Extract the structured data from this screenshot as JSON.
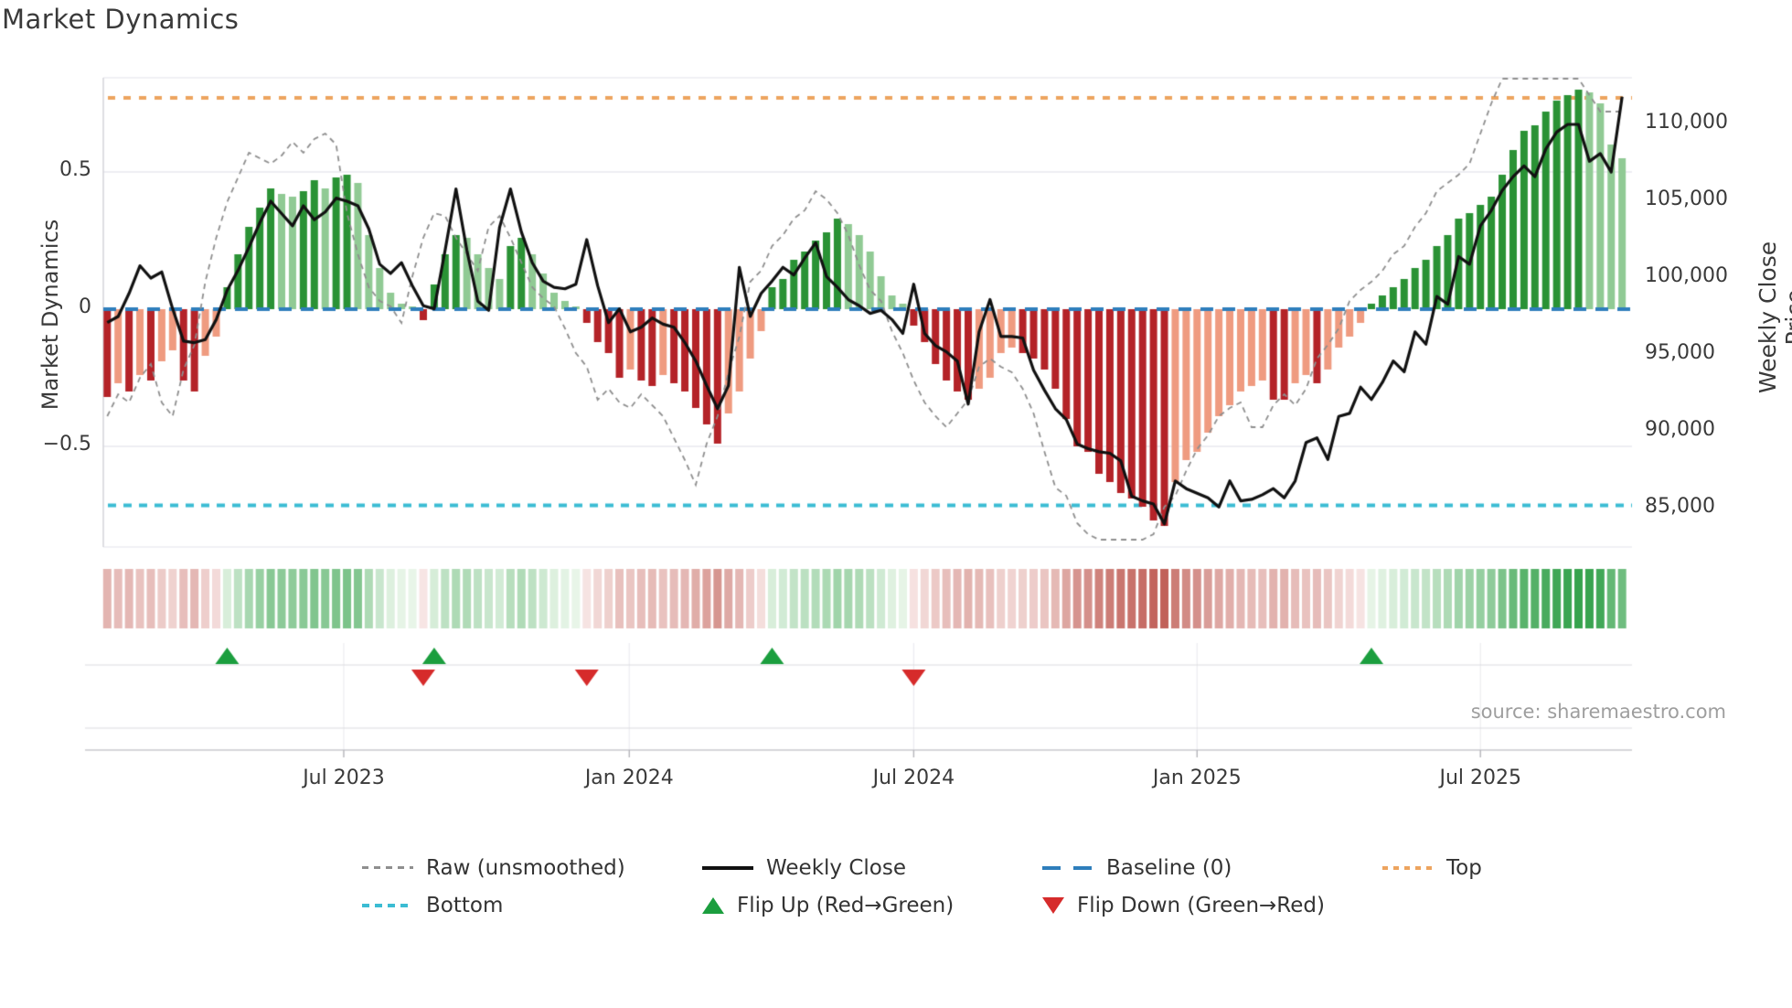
{
  "title": "Market Dynamics",
  "source_text": "source: sharemaestro.com",
  "axes": {
    "left_label": "Market Dynamics",
    "right_label": "Weekly Close Price",
    "left_ticks": [
      {
        "label": "0.5",
        "value": 0.5
      },
      {
        "label": "0",
        "value": 0.0
      },
      {
        "label": "−0.5",
        "value": -0.5
      }
    ],
    "right_ticks": [
      {
        "label": "110,000",
        "value": 110000
      },
      {
        "label": "105,000",
        "value": 105000
      },
      {
        "label": "100,000",
        "value": 100000
      },
      {
        "label": "95,000",
        "value": 95000
      },
      {
        "label": "90,000",
        "value": 90000
      },
      {
        "label": "85,000",
        "value": 85000
      }
    ],
    "x_ticks": [
      {
        "label": "Jul 2023",
        "week": 21.7
      },
      {
        "label": "Jan 2024",
        "week": 47.9
      },
      {
        "label": "Jul 2024",
        "week": 74.0
      },
      {
        "label": "Jan 2025",
        "week": 100.0
      },
      {
        "label": "Jul 2025",
        "week": 126.0
      }
    ]
  },
  "legend": {
    "items": [
      {
        "label": "Raw (unsmoothed)",
        "swatch": "dashed-gray-line"
      },
      {
        "label": "Weekly Close",
        "swatch": "solid-black-line"
      },
      {
        "label": "Baseline (0)",
        "swatch": "dashed-blue-line"
      },
      {
        "label": "Top",
        "swatch": "dotted-orange-line"
      },
      {
        "label": "Bottom",
        "swatch": "dashed-cyan-line"
      },
      {
        "label": "Flip Up (Red→Green)",
        "swatch": "green-up-triangle"
      },
      {
        "label": "Flip Down (Green→Red)",
        "swatch": "red-down-triangle"
      }
    ]
  },
  "colors": {
    "bar_pos_strong": "#2a9235",
    "bar_pos_weak": "#90ca94",
    "bar_neg_strong": "#b42328",
    "bar_neg_weak": "#ef9b80",
    "price_line": "#111111",
    "raw_line": "#8f8f8f",
    "baseline": "#2e7ebc",
    "top_line": "#eda45f",
    "bottom_line": "#3bbcd3",
    "flip_up": "#1b9e3e",
    "flip_down": "#d62b2b",
    "grid": "#e9e9ef",
    "subgrid": "#dcdce0",
    "spine": "#c9c9ce",
    "heat_green_max": "#37a34e",
    "heat_green_min": "#eaf6ea",
    "heat_red_max": "#c05f57",
    "heat_red_min": "#faeceb"
  },
  "chart_data": {
    "type": "bar",
    "subtype": "oscillator-with-price-overlay",
    "title": "Market Dynamics",
    "x_unit": "week",
    "weeks": 140,
    "osc_ylim": [
      -0.87,
      0.84
    ],
    "price_ylim": [
      82500,
      113000
    ],
    "baseline": 0,
    "top_level": 0.77,
    "bottom_level": -0.715,
    "grid": "horizontal-only",
    "legend_position": "bottom-center",
    "oscillator": [
      -0.32,
      -0.27,
      -0.3,
      -0.24,
      -0.26,
      -0.19,
      -0.15,
      -0.26,
      -0.3,
      -0.17,
      -0.1,
      0.08,
      0.2,
      0.3,
      0.37,
      0.44,
      0.42,
      0.41,
      0.43,
      0.47,
      0.44,
      0.48,
      0.49,
      0.46,
      0.27,
      0.15,
      0.06,
      0.02,
      0.01,
      -0.04,
      0.09,
      0.2,
      0.27,
      0.26,
      0.2,
      0.15,
      0.11,
      0.23,
      0.26,
      0.2,
      0.13,
      0.06,
      0.03,
      0.01,
      -0.05,
      -0.12,
      -0.16,
      -0.25,
      -0.22,
      -0.26,
      -0.28,
      -0.24,
      -0.27,
      -0.3,
      -0.36,
      -0.42,
      -0.49,
      -0.38,
      -0.3,
      -0.18,
      -0.08,
      0.08,
      0.11,
      0.18,
      0.21,
      0.25,
      0.28,
      0.33,
      0.31,
      0.27,
      0.21,
      0.12,
      0.05,
      0.02,
      -0.06,
      -0.12,
      -0.2,
      -0.26,
      -0.3,
      -0.33,
      -0.29,
      -0.25,
      -0.16,
      -0.14,
      -0.16,
      -0.18,
      -0.22,
      -0.29,
      -0.4,
      -0.5,
      -0.52,
      -0.6,
      -0.63,
      -0.67,
      -0.69,
      -0.72,
      -0.77,
      -0.79,
      -0.63,
      -0.55,
      -0.52,
      -0.45,
      -0.39,
      -0.35,
      -0.3,
      -0.28,
      -0.26,
      -0.33,
      -0.33,
      -0.27,
      -0.24,
      -0.27,
      -0.22,
      -0.14,
      -0.1,
      -0.05,
      0.02,
      0.05,
      0.08,
      0.11,
      0.15,
      0.18,
      0.23,
      0.27,
      0.33,
      0.35,
      0.38,
      0.41,
      0.49,
      0.58,
      0.65,
      0.67,
      0.72,
      0.76,
      0.78,
      0.8,
      0.79,
      0.75,
      0.6,
      0.55
    ],
    "raw": [
      -0.39,
      -0.31,
      -0.34,
      -0.25,
      -0.2,
      -0.34,
      -0.39,
      -0.22,
      -0.13,
      0.1,
      0.26,
      0.39,
      0.48,
      0.57,
      0.55,
      0.53,
      0.56,
      0.61,
      0.57,
      0.62,
      0.64,
      0.6,
      0.35,
      0.2,
      0.08,
      0.03,
      0.01,
      -0.05,
      0.12,
      0.26,
      0.35,
      0.34,
      0.26,
      0.2,
      0.14,
      0.3,
      0.34,
      0.26,
      0.17,
      0.08,
      0.04,
      0.01,
      -0.07,
      -0.16,
      -0.21,
      -0.33,
      -0.29,
      -0.34,
      -0.36,
      -0.31,
      -0.35,
      -0.39,
      -0.47,
      -0.55,
      -0.64,
      -0.49,
      -0.39,
      -0.23,
      -0.1,
      0.1,
      0.14,
      0.23,
      0.27,
      0.33,
      0.36,
      0.43,
      0.4,
      0.35,
      0.27,
      0.16,
      0.07,
      0.03,
      -0.08,
      -0.16,
      -0.26,
      -0.34,
      -0.39,
      -0.43,
      -0.38,
      -0.33,
      -0.21,
      -0.18,
      -0.21,
      -0.23,
      -0.29,
      -0.38,
      -0.52,
      -0.65,
      -0.68,
      -0.78,
      -0.82,
      -0.84,
      -0.84,
      -0.84,
      -0.84,
      -0.84,
      -0.82,
      -0.72,
      -0.68,
      -0.59,
      -0.51,
      -0.46,
      -0.39,
      -0.36,
      -0.34,
      -0.43,
      -0.43,
      -0.35,
      -0.31,
      -0.35,
      -0.29,
      -0.18,
      -0.13,
      -0.07,
      0.03,
      0.07,
      0.1,
      0.14,
      0.2,
      0.23,
      0.3,
      0.35,
      0.43,
      0.46,
      0.49,
      0.53,
      0.64,
      0.75,
      0.84,
      0.84,
      0.84,
      0.84,
      0.84,
      0.84,
      0.84,
      0.84,
      0.78,
      0.72,
      0.72,
      0.72
    ],
    "price": [
      97100,
      97500,
      99000,
      100800,
      100000,
      100400,
      98000,
      95900,
      95800,
      96000,
      97300,
      99200,
      100500,
      102000,
      103600,
      105000,
      104200,
      103400,
      104700,
      103800,
      104300,
      105200,
      105000,
      104700,
      103200,
      100900,
      100300,
      101000,
      99500,
      98200,
      98000,
      101800,
      105800,
      101800,
      98500,
      97900,
      103300,
      105800,
      103000,
      101000,
      99800,
      99400,
      99300,
      99600,
      102500,
      99500,
      97100,
      98000,
      96500,
      96800,
      97400,
      97000,
      96800,
      95800,
      94600,
      93000,
      91500,
      93000,
      100700,
      97500,
      99000,
      99800,
      100700,
      100200,
      101300,
      102300,
      100100,
      99400,
      98600,
      98200,
      97700,
      97900,
      97300,
      96400,
      99600,
      96400,
      95600,
      95200,
      94600,
      91800,
      96500,
      98600,
      96200,
      96200,
      96100,
      94000,
      92700,
      91500,
      90800,
      89200,
      88900,
      88700,
      88600,
      88100,
      85800,
      85500,
      85300,
      84000,
      86800,
      86300,
      86000,
      85700,
      85100,
      86800,
      85500,
      85600,
      85900,
      86300,
      85700,
      86800,
      89300,
      89600,
      88200,
      91000,
      91200,
      92900,
      92100,
      93200,
      94600,
      93900,
      96500,
      95700,
      98800,
      98300,
      101400,
      100900,
      103400,
      104400,
      105700,
      106600,
      107300,
      106600,
      108400,
      109500,
      110000,
      110000,
      107600,
      108100,
      106900,
      111800
    ],
    "flip_up_weeks": [
      11,
      30,
      61,
      116
    ],
    "flip_down_weeks": [
      29,
      44,
      74
    ]
  }
}
